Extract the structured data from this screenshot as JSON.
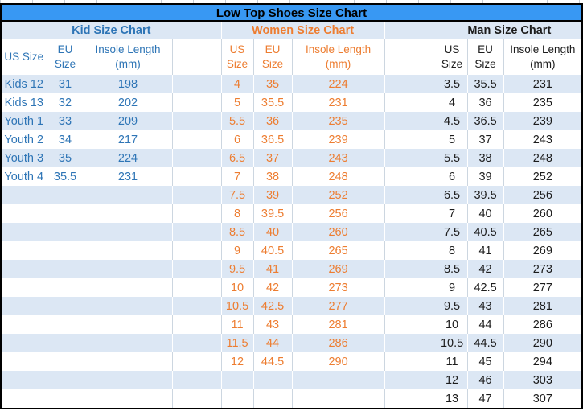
{
  "header": {
    "title": "Low Top Shoes Size Chart"
  },
  "colors": {
    "title_bar_bg": "#3898f3",
    "stripe_bg": "#dce7f4",
    "kid_text": "#2e75b6",
    "women_text": "#ed7d31",
    "men_text": "#1c1c1c",
    "grid_line": "#ccd6e0",
    "frame_border": "#000000"
  },
  "chart_data": [
    {
      "type": "table",
      "title": "Kid Size Chart",
      "columns": [
        "US Size",
        "EU Size",
        "Insole Length (mm)"
      ],
      "rows": [
        [
          "Kids 12",
          "31",
          "198"
        ],
        [
          "Kids 13",
          "32",
          "202"
        ],
        [
          "Youth 1",
          "33",
          "209"
        ],
        [
          "Youth 2",
          "34",
          "217"
        ],
        [
          "Youth 3",
          "35",
          "224"
        ],
        [
          "Youth 4",
          "35.5",
          "231"
        ]
      ]
    },
    {
      "type": "table",
      "title": "Women Size Chart",
      "columns": [
        "US Size",
        "EU Size",
        "Insole Length (mm)"
      ],
      "rows": [
        [
          "4",
          "35",
          "224"
        ],
        [
          "5",
          "35.5",
          "231"
        ],
        [
          "5.5",
          "36",
          "235"
        ],
        [
          "6",
          "36.5",
          "239"
        ],
        [
          "6.5",
          "37",
          "243"
        ],
        [
          "7",
          "38",
          "248"
        ],
        [
          "7.5",
          "39",
          "252"
        ],
        [
          "8",
          "39.5",
          "256"
        ],
        [
          "8.5",
          "40",
          "260"
        ],
        [
          "9",
          "40.5",
          "265"
        ],
        [
          "9.5",
          "41",
          "269"
        ],
        [
          "10",
          "42",
          "273"
        ],
        [
          "10.5",
          "42.5",
          "277"
        ],
        [
          "11",
          "43",
          "281"
        ],
        [
          "11.5",
          "44",
          "286"
        ],
        [
          "12",
          "44.5",
          "290"
        ]
      ]
    },
    {
      "type": "table",
      "title": "Man Size Chart",
      "columns": [
        "US Size",
        "EU Size",
        "Insole Length (mm)"
      ],
      "rows": [
        [
          "3.5",
          "35.5",
          "231"
        ],
        [
          "4",
          "36",
          "235"
        ],
        [
          "4.5",
          "36.5",
          "239"
        ],
        [
          "5",
          "37",
          "243"
        ],
        [
          "5.5",
          "38",
          "248"
        ],
        [
          "6",
          "39",
          "252"
        ],
        [
          "6.5",
          "39.5",
          "256"
        ],
        [
          "7",
          "40",
          "260"
        ],
        [
          "7.5",
          "40.5",
          "265"
        ],
        [
          "8",
          "41",
          "269"
        ],
        [
          "8.5",
          "42",
          "273"
        ],
        [
          "9",
          "42.5",
          "277"
        ],
        [
          "9.5",
          "43",
          "281"
        ],
        [
          "10",
          "44",
          "286"
        ],
        [
          "10.5",
          "44.5",
          "290"
        ],
        [
          "11",
          "45",
          "294"
        ],
        [
          "12",
          "46",
          "303"
        ],
        [
          "13",
          "47",
          "307"
        ]
      ]
    }
  ]
}
